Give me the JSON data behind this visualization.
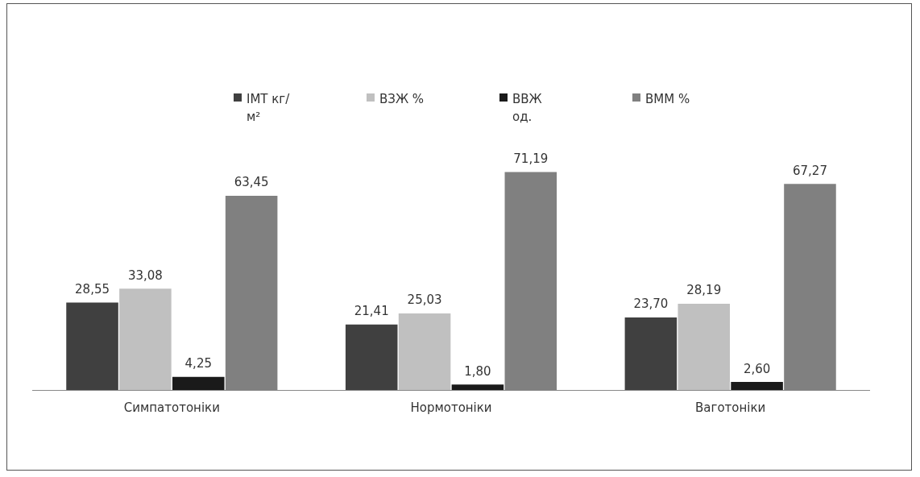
{
  "chart_data": {
    "type": "bar",
    "categories": [
      "Симпатотоніки",
      "Нормотоніки",
      "Ваготоніки"
    ],
    "series": [
      {
        "name": "ІМТ кг/м²",
        "color": "#404040",
        "values": [
          28.55,
          21.41,
          23.7
        ],
        "value_labels": [
          "28,55",
          "21,41",
          "23,70"
        ]
      },
      {
        "name": "ВЗЖ %",
        "color": "#c0c0c0",
        "values": [
          33.08,
          25.03,
          28.19
        ],
        "value_labels": [
          "33,08",
          "25,03",
          "28,19"
        ]
      },
      {
        "name": "ВВЖ од.",
        "color": "#1a1a1a",
        "values": [
          4.25,
          1.8,
          2.6
        ],
        "value_labels": [
          "4,25",
          "1,80",
          "2,60"
        ]
      },
      {
        "name": "ВММ %",
        "color": "#808080",
        "values": [
          63.45,
          71.19,
          67.27
        ],
        "value_labels": [
          "63,45",
          "71,19",
          "67,27"
        ]
      }
    ],
    "legend": "top",
    "tick_labels": "x",
    "grid": false
  }
}
